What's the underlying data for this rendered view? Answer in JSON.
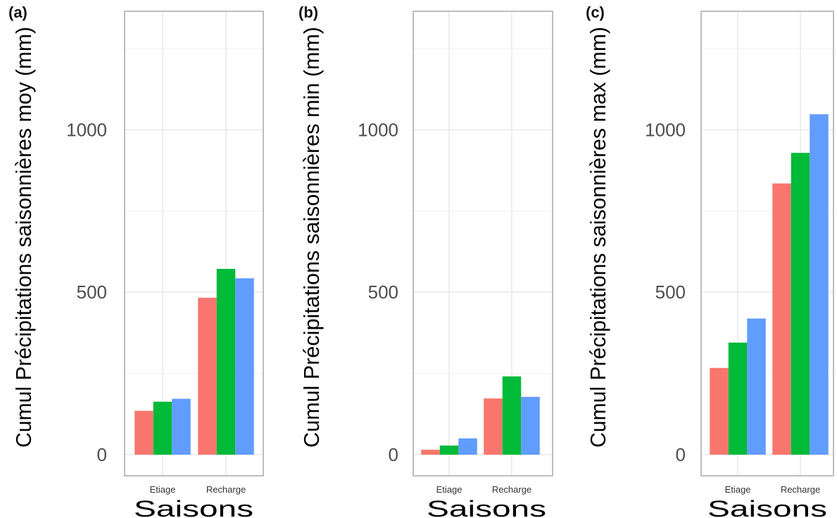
{
  "colors": {
    "series1": "#F8766D",
    "series2": "#00BA38",
    "series3": "#619CFF",
    "grid": "#e3e3e3",
    "border": "#bdbdbd"
  },
  "chart_data": [
    {
      "type": "bar",
      "tag": "(a)",
      "title": "",
      "xlabel": "Saisons",
      "ylabel": "Cumul Précipitations saisonnières moy (mm)",
      "categories": [
        "Etiage",
        "Recharge"
      ],
      "series": [
        {
          "values": [
            135,
            483
          ]
        },
        {
          "values": [
            163,
            572
          ]
        },
        {
          "values": [
            172,
            543
          ]
        }
      ],
      "ylim": [
        -65,
        1365
      ],
      "yticks": [
        "0",
        "500",
        "1000"
      ],
      "grid": true,
      "legend": "none"
    },
    {
      "type": "bar",
      "tag": "(b)",
      "title": "",
      "xlabel": "Saisons",
      "ylabel": "Cumul Précipitations saisonnières min (mm)",
      "categories": [
        "Etiage",
        "Recharge"
      ],
      "series": [
        {
          "values": [
            15,
            173
          ]
        },
        {
          "values": [
            28,
            241
          ]
        },
        {
          "values": [
            50,
            178
          ]
        }
      ],
      "ylim": [
        -65,
        1365
      ],
      "yticks": [
        "0",
        "500",
        "1000"
      ],
      "grid": true,
      "legend": "none"
    },
    {
      "type": "bar",
      "tag": "(c)",
      "title": "",
      "xlabel": "Saisons",
      "ylabel": "Cumul Précipitations saisonnières max (mm)",
      "categories": [
        "Etiage",
        "Recharge"
      ],
      "series": [
        {
          "values": [
            267,
            835
          ]
        },
        {
          "values": [
            345,
            929
          ]
        },
        {
          "values": [
            419,
            1048
          ]
        }
      ],
      "ylim": [
        -65,
        1365
      ],
      "yticks": [
        "0",
        "500",
        "1000"
      ],
      "grid": true,
      "legend": "none"
    }
  ]
}
